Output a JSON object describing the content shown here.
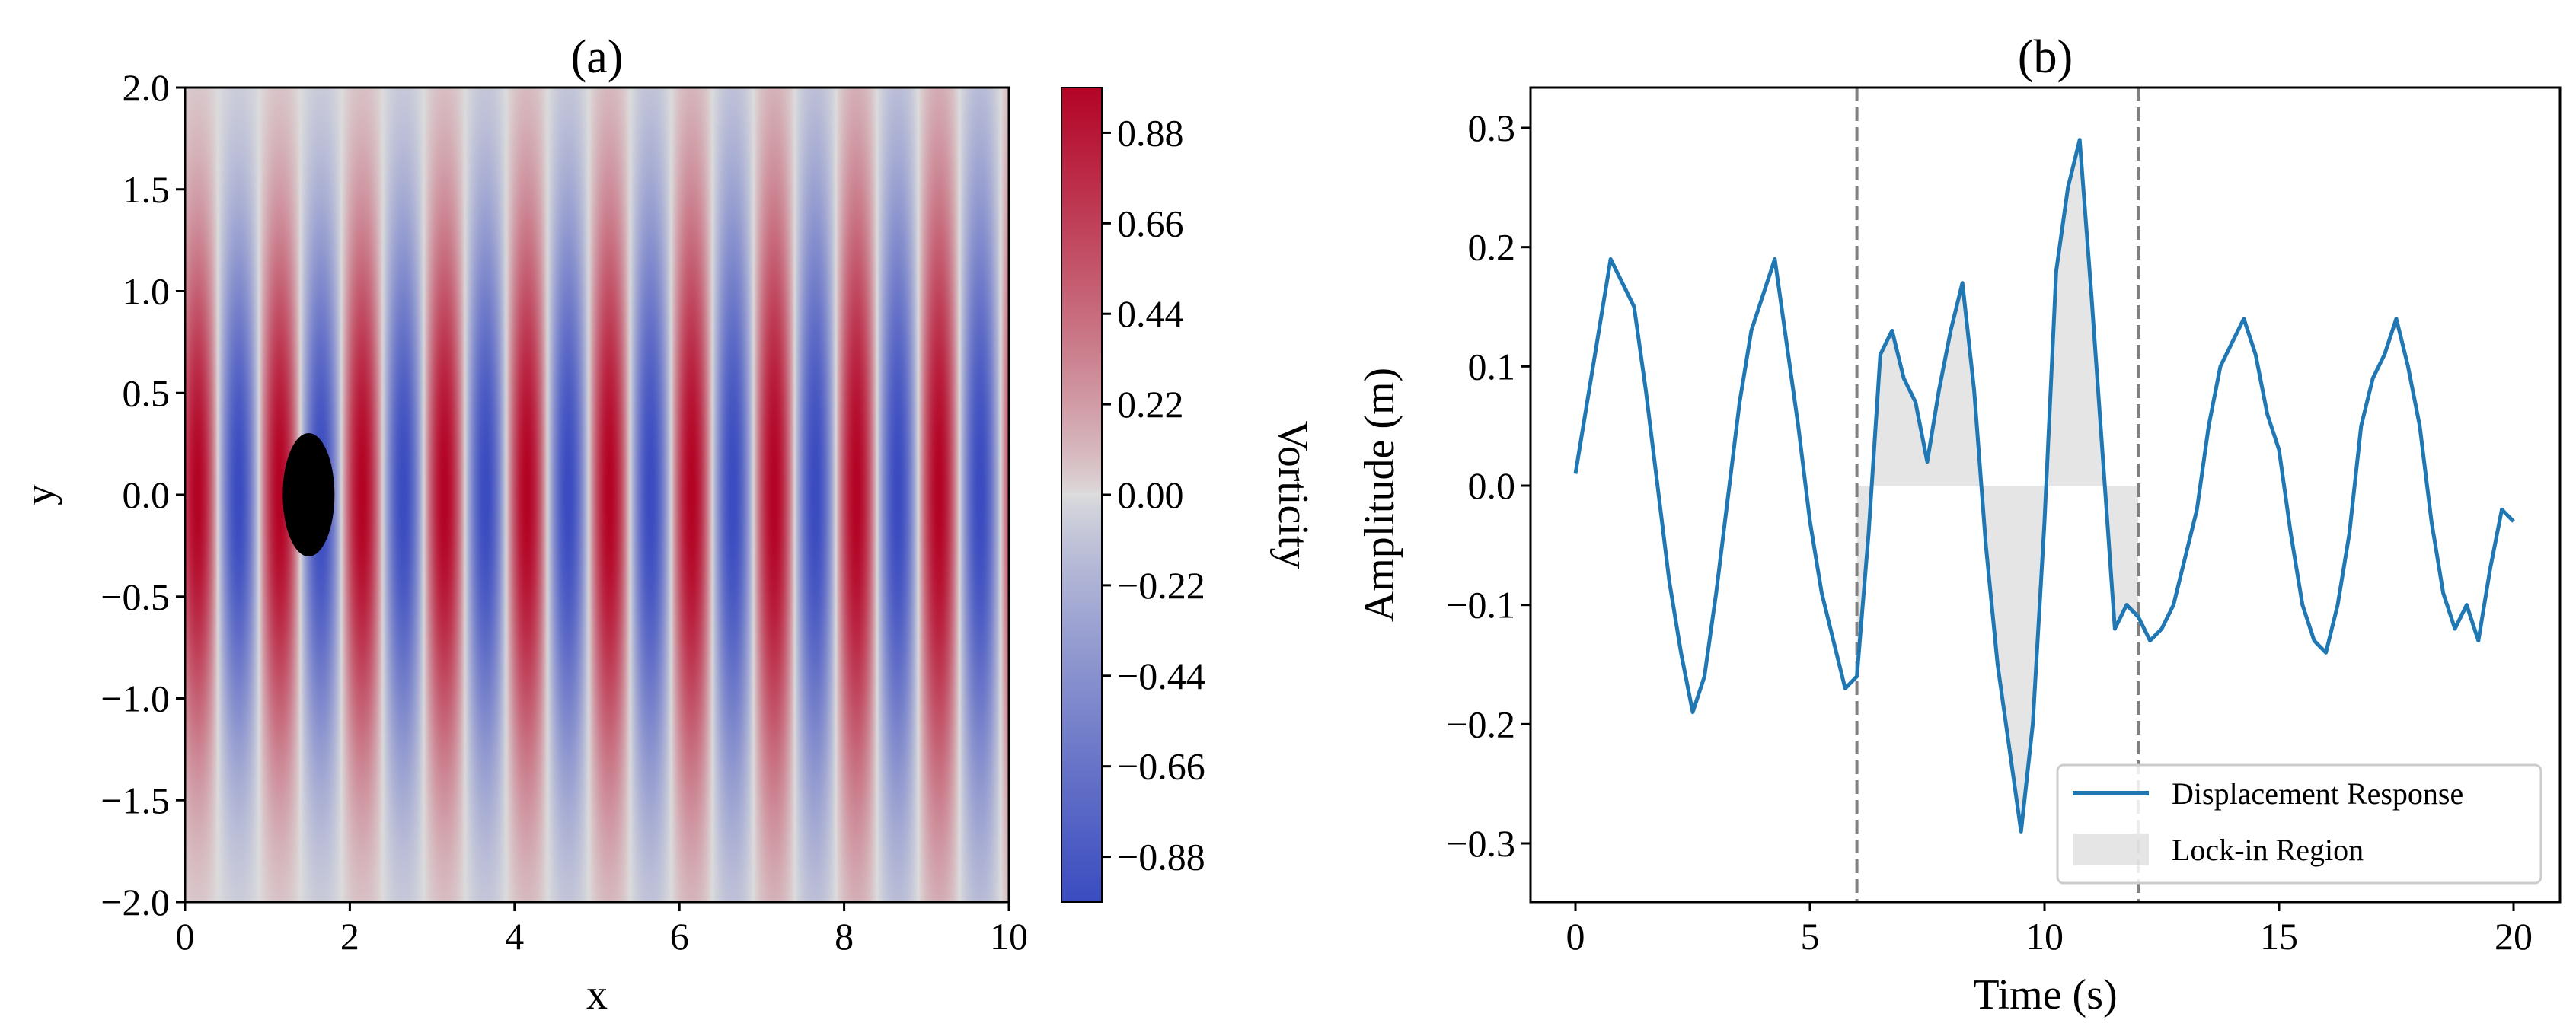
{
  "chart_data": [
    {
      "type": "heatmap",
      "title": "(a)",
      "xlabel": "x",
      "ylabel": "y",
      "xlim": [
        0,
        10
      ],
      "ylim": [
        -2.0,
        2.0
      ],
      "xticks": [
        "0",
        "2",
        "4",
        "6",
        "8",
        "10"
      ],
      "yticks": [
        "2.0",
        "1.5",
        "1.0",
        "0.5",
        "0.0",
        "−0.5",
        "−1.0",
        "−1.5",
        "−2.0"
      ],
      "colormap": "coolwarm",
      "colorbar": {
        "label": "Vorticity",
        "range": [
          -0.99,
          0.99
        ],
        "ticks": [
          "0.88",
          "0.66",
          "0.44",
          "0.22",
          "0.00",
          "−0.22",
          "−0.44",
          "−0.66",
          "−0.88"
        ],
        "colors": {
          "low": "#3b4cc0",
          "mid": "#dddddd",
          "high": "#b40426"
        }
      },
      "obstacle": {
        "shape": "ellipse",
        "center": [
          1.5,
          0.0
        ],
        "color": "#000000"
      }
    },
    {
      "type": "line",
      "title": "(b)",
      "xlabel": "Time (s)",
      "ylabel": "Amplitude (m)",
      "xlim": [
        -1,
        21
      ],
      "ylim": [
        -0.35,
        0.33
      ],
      "xticks": [
        "0",
        "5",
        "10",
        "15",
        "20"
      ],
      "yticks": [
        "0.3",
        "0.2",
        "0.1",
        "0.0",
        "−0.1",
        "−0.2",
        "−0.3"
      ],
      "legend_position": "lower-right",
      "series": [
        {
          "name": "Displacement Response",
          "color": "#1f77b4",
          "x": [
            0,
            0.25,
            0.5,
            0.75,
            1,
            1.25,
            1.5,
            1.75,
            2,
            2.25,
            2.5,
            2.75,
            3,
            3.25,
            3.5,
            3.75,
            4,
            4.25,
            4.5,
            4.75,
            5,
            5.25,
            5.5,
            5.75,
            6,
            6.25,
            6.5,
            6.75,
            7,
            7.25,
            7.5,
            7.75,
            8,
            8.25,
            8.5,
            8.75,
            9,
            9.25,
            9.5,
            9.75,
            10,
            10.25,
            10.5,
            10.75,
            11,
            11.25,
            11.5,
            11.75,
            12,
            12.25,
            12.5,
            12.75,
            13,
            13.25,
            13.5,
            13.75,
            14,
            14.25,
            14.5,
            14.75,
            15,
            15.25,
            15.5,
            15.75,
            16,
            16.25,
            16.5,
            16.75,
            17,
            17.25,
            17.5,
            17.75,
            18,
            18.25,
            18.5,
            18.75,
            19,
            19.25,
            19.5,
            19.75,
            20
          ],
          "y": [
            0.01,
            0.07,
            0.13,
            0.19,
            0.17,
            0.15,
            0.08,
            0.0,
            -0.08,
            -0.14,
            -0.19,
            -0.16,
            -0.09,
            -0.01,
            0.07,
            0.13,
            0.16,
            0.19,
            0.12,
            0.05,
            -0.03,
            -0.09,
            -0.13,
            -0.17,
            -0.16,
            -0.04,
            0.11,
            0.13,
            0.09,
            0.07,
            0.02,
            0.08,
            0.13,
            0.17,
            0.08,
            -0.05,
            -0.15,
            -0.22,
            -0.29,
            -0.2,
            -0.03,
            0.18,
            0.25,
            0.29,
            0.16,
            0.02,
            -0.12,
            -0.1,
            -0.11,
            -0.13,
            -0.12,
            -0.1,
            -0.06,
            -0.02,
            0.05,
            0.1,
            0.12,
            0.14,
            0.11,
            0.06,
            0.03,
            -0.04,
            -0.1,
            -0.13,
            -0.14,
            -0.1,
            -0.04,
            0.05,
            0.09,
            0.11,
            0.14,
            0.1,
            0.05,
            -0.03,
            -0.09,
            -0.12,
            -0.1,
            -0.13,
            -0.07,
            -0.02,
            -0.03
          ]
        },
        {
          "name": "Lock-in Region",
          "type": "fill_between",
          "x_range": [
            6,
            12
          ],
          "baseline": 0,
          "color": "#d3d3d3"
        }
      ],
      "vlines": {
        "x": [
          6,
          12
        ],
        "style": "dashed",
        "color": "#808080"
      }
    }
  ]
}
